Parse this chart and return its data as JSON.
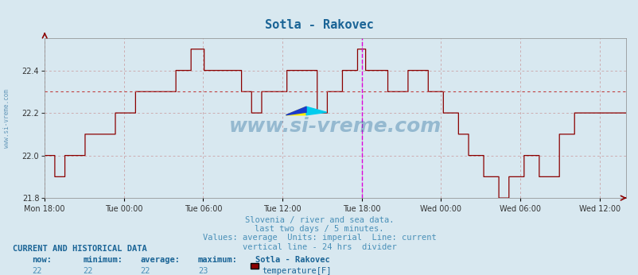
{
  "title": "Sotla - Rakovec",
  "title_color": "#1a6496",
  "bg_color": "#d8e8f0",
  "plot_bg_color": "#d8e8f0",
  "line_color": "#8b0000",
  "grid_color": "#c07070",
  "avg_line_color": "#c04040",
  "vline_color": "#dd00dd",
  "ylim": [
    21.8,
    22.55
  ],
  "yticks": [
    21.8,
    22.0,
    22.2,
    22.4
  ],
  "xtick_labels": [
    "Mon 18:00",
    "Tue 00:00",
    "Tue 06:00",
    "Tue 12:00",
    "Tue 18:00",
    "Wed 00:00",
    "Wed 06:00",
    "Wed 12:00"
  ],
  "avg_value": 22.3,
  "vline_x": 0.545,
  "watermark_text": "www.si-vreme.com",
  "watermark_color": "#1a6496",
  "watermark_alpha": 0.35,
  "subtitle_lines": [
    "Slovenia / river and sea data.",
    "last two days / 5 minutes.",
    "Values: average  Units: imperial  Line: current",
    "vertical line - 24 hrs  divider"
  ],
  "subtitle_color": "#4a90b8",
  "footer_header": "CURRENT AND HISTORICAL DATA",
  "footer_header_color": "#1a6496",
  "footer_cols": [
    "now:",
    "minimum:",
    "average:",
    "maximum:",
    "Sotla - Rakovec"
  ],
  "footer_vals": [
    "22",
    "22",
    "22",
    "23"
  ],
  "footer_legend": "temperature[F]",
  "footer_legend_color": "#8b0000"
}
